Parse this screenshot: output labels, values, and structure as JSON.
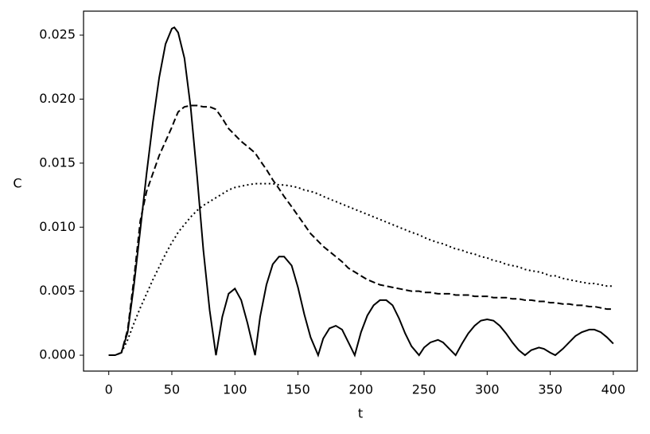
{
  "chart_data": {
    "type": "line",
    "x_label": "t",
    "y_label": "C",
    "x": [
      0,
      5,
      10,
      15,
      20,
      25,
      30,
      35,
      40,
      45,
      50,
      52,
      55,
      60,
      65,
      70,
      75,
      80,
      85,
      90,
      95,
      100,
      105,
      110,
      116,
      120,
      125,
      130,
      135,
      139,
      145,
      150,
      155,
      160,
      166,
      170,
      175,
      180,
      185,
      190,
      195,
      200,
      205,
      210,
      215,
      220,
      225,
      230,
      235,
      240,
      246,
      250,
      255,
      261,
      265,
      270,
      275,
      280,
      285,
      290,
      295,
      300,
      305,
      310,
      315,
      320,
      325,
      330,
      335,
      341,
      345,
      350,
      354,
      360,
      365,
      370,
      375,
      381,
      385,
      390,
      395,
      400
    ],
    "series": [
      {
        "color": "#000000",
        "linestyle": "solid",
        "values": [
          0,
          0,
          0.0002,
          0.0018,
          0.0055,
          0.0098,
          0.0142,
          0.0182,
          0.0217,
          0.0243,
          0.0255,
          0.0256,
          0.0252,
          0.0232,
          0.0193,
          0.014,
          0.0082,
          0.0035,
          0,
          0.003,
          0.0048,
          0.0052,
          0.0043,
          0.0025,
          0,
          0.003,
          0.0055,
          0.0071,
          0.0077,
          0.0077,
          0.007,
          0.0053,
          0.0032,
          0.0014,
          0,
          0.0013,
          0.0021,
          0.0023,
          0.002,
          0.001,
          0,
          0.0018,
          0.0031,
          0.0039,
          0.0043,
          0.0043,
          0.0039,
          0.0029,
          0.0017,
          0.0007,
          0,
          0.0006,
          0.001,
          0.0012,
          0.001,
          0.0005,
          0,
          0.0009,
          0.0017,
          0.0023,
          0.0027,
          0.0028,
          0.0027,
          0.0023,
          0.0017,
          0.001,
          0.0004,
          0,
          0.0004,
          0.0006,
          0.0005,
          0.0002,
          0,
          0.0005,
          0.001,
          0.0015,
          0.0018,
          0.002,
          0.002,
          0.0018,
          0.0014,
          0.0009
        ]
      },
      {
        "color": "#000000",
        "linestyle": "dashed",
        "values": [
          0,
          0,
          0.0002,
          0.002,
          0.006,
          0.0105,
          0.0128,
          0.0142,
          0.0156,
          0.0167,
          0.0178,
          0.0183,
          0.019,
          0.0194,
          0.0195,
          0.0195,
          0.0194,
          0.0194,
          0.0192,
          0.0185,
          0.0177,
          0.0172,
          0.0167,
          0.0163,
          0.0158,
          0.0152,
          0.0145,
          0.0137,
          0.013,
          0.0124,
          0.0116,
          0.0109,
          0.0102,
          0.0095,
          0.0089,
          0.0085,
          0.0081,
          0.0077,
          0.0073,
          0.0068,
          0.0065,
          0.0062,
          0.0059,
          0.0057,
          0.0055,
          0.0054,
          0.0053,
          0.0052,
          0.0051,
          0.005,
          0.005,
          0.0049,
          0.0049,
          0.0048,
          0.0048,
          0.0048,
          0.0047,
          0.0047,
          0.0047,
          0.0046,
          0.0046,
          0.0046,
          0.0045,
          0.0045,
          0.0045,
          0.0044,
          0.0044,
          0.0043,
          0.0043,
          0.0042,
          0.0042,
          0.0041,
          0.0041,
          0.004,
          0.004,
          0.0039,
          0.0039,
          0.0038,
          0.0038,
          0.0037,
          0.0036,
          0.0036
        ]
      },
      {
        "color": "#000000",
        "linestyle": "dotted",
        "values": [
          0,
          0,
          0.0002,
          0.0012,
          0.0025,
          0.0037,
          0.0048,
          0.0059,
          0.0069,
          0.0079,
          0.0088,
          0.0091,
          0.0096,
          0.0102,
          0.0108,
          0.0113,
          0.0117,
          0.012,
          0.0123,
          0.0126,
          0.0129,
          0.0131,
          0.0132,
          0.0133,
          0.0134,
          0.0134,
          0.0134,
          0.0134,
          0.0133,
          0.0133,
          0.0132,
          0.0131,
          0.0129,
          0.0128,
          0.0126,
          0.0124,
          0.0122,
          0.012,
          0.0118,
          0.0116,
          0.0114,
          0.0112,
          0.011,
          0.0108,
          0.0106,
          0.0104,
          0.0102,
          0.01,
          0.0098,
          0.0096,
          0.0094,
          0.0092,
          0.009,
          0.0088,
          0.0087,
          0.0085,
          0.0083,
          0.0082,
          0.008,
          0.0079,
          0.0077,
          0.0076,
          0.0074,
          0.0073,
          0.0071,
          0.007,
          0.0069,
          0.0067,
          0.0066,
          0.0065,
          0.0064,
          0.0062,
          0.0062,
          0.006,
          0.0059,
          0.0058,
          0.0057,
          0.0056,
          0.0056,
          0.0055,
          0.0054,
          0.0054
        ]
      }
    ],
    "xlim": [
      -20,
      419
    ],
    "ylim": [
      -0.00124,
      0.02687
    ],
    "xticks": [
      0,
      50,
      100,
      150,
      200,
      250,
      300,
      350,
      400
    ],
    "yticks": [
      {
        "value": 0,
        "label": "0.000"
      },
      {
        "value": 0.005,
        "label": "0.005"
      },
      {
        "value": 0.01,
        "label": "0.010"
      },
      {
        "value": 0.015,
        "label": "0.015"
      },
      {
        "value": 0.02,
        "label": "0.020"
      },
      {
        "value": 0.025,
        "label": "0.025"
      }
    ],
    "grid": false
  }
}
